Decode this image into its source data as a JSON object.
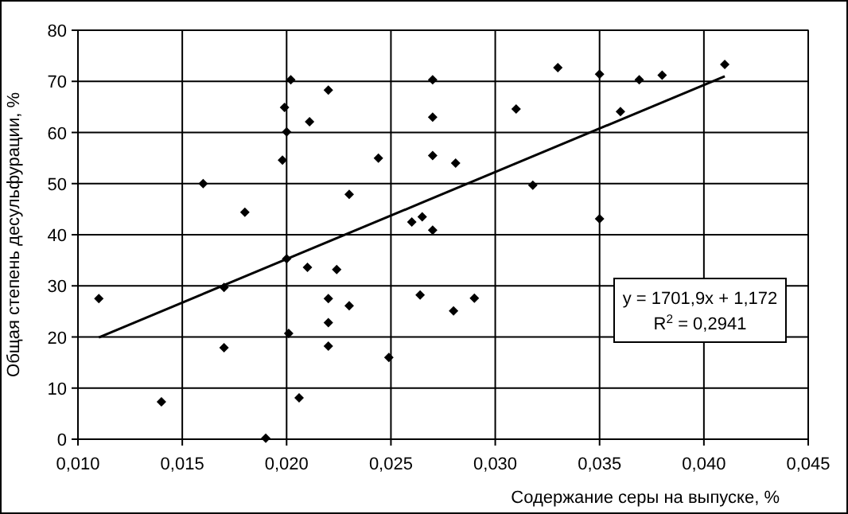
{
  "chart_data": {
    "type": "scatter",
    "xlabel": "Содержание серы на выпуске, %",
    "ylabel": "Общая степень десульфурации, %",
    "xlim": [
      0.01,
      0.045
    ],
    "xticks": [
      {
        "value": 0.01,
        "label": "0,010"
      },
      {
        "value": 0.015,
        "label": "0,015"
      },
      {
        "value": 0.02,
        "label": "0,020"
      },
      {
        "value": 0.025,
        "label": "0,025"
      },
      {
        "value": 0.03,
        "label": "0,030"
      },
      {
        "value": 0.035,
        "label": "0,035"
      },
      {
        "value": 0.04,
        "label": "0,040"
      },
      {
        "value": 0.045,
        "label": "0,045"
      }
    ],
    "ylim": [
      0,
      80
    ],
    "yticks": [
      0,
      10,
      20,
      30,
      40,
      50,
      60,
      70,
      80
    ],
    "grid": true,
    "marker": "diamond",
    "annotations": [
      "y = 1701,9x + 1,172",
      "R$^{2}$ = 0,2941"
    ],
    "series": [
      {
        "color": "#000000",
        "x": [
          0.0202,
          0.022,
          0.0199,
          0.0211,
          0.02,
          0.0198,
          0.016,
          0.018,
          0.023,
          0.021,
          0.0224,
          0.011,
          0.017,
          0.02,
          0.022,
          0.023,
          0.022,
          0.0201,
          0.017,
          0.022,
          0.014,
          0.0206,
          0.019,
          0.027,
          0.027,
          0.033,
          0.035,
          0.031,
          0.0244,
          0.027,
          0.0281,
          0.0318,
          0.026,
          0.0265,
          0.027,
          0.035,
          0.0264,
          0.029,
          0.028,
          0.0249,
          0.036,
          0.0369,
          0.038,
          0.041
        ],
        "values": [
          70.3,
          68.3,
          64.9,
          62.1,
          60.1,
          54.6,
          50.0,
          44.4,
          47.9,
          33.6,
          33.2,
          27.5,
          29.7,
          35.3,
          27.5,
          26.1,
          22.8,
          20.7,
          17.9,
          18.2,
          7.3,
          8.1,
          0.2,
          70.3,
          63.0,
          72.7,
          71.4,
          64.6,
          55.0,
          55.5,
          54.0,
          49.7,
          42.5,
          43.5,
          40.9,
          43.1,
          28.2,
          27.6,
          25.1,
          16.0,
          64.1,
          70.3,
          71.2,
          73.3
        ]
      },
      {
        "type": "line",
        "color": "#000000",
        "marker": "none",
        "x": [
          0.011,
          0.041
        ],
        "values": [
          19.9,
          71.0
        ]
      }
    ]
  }
}
